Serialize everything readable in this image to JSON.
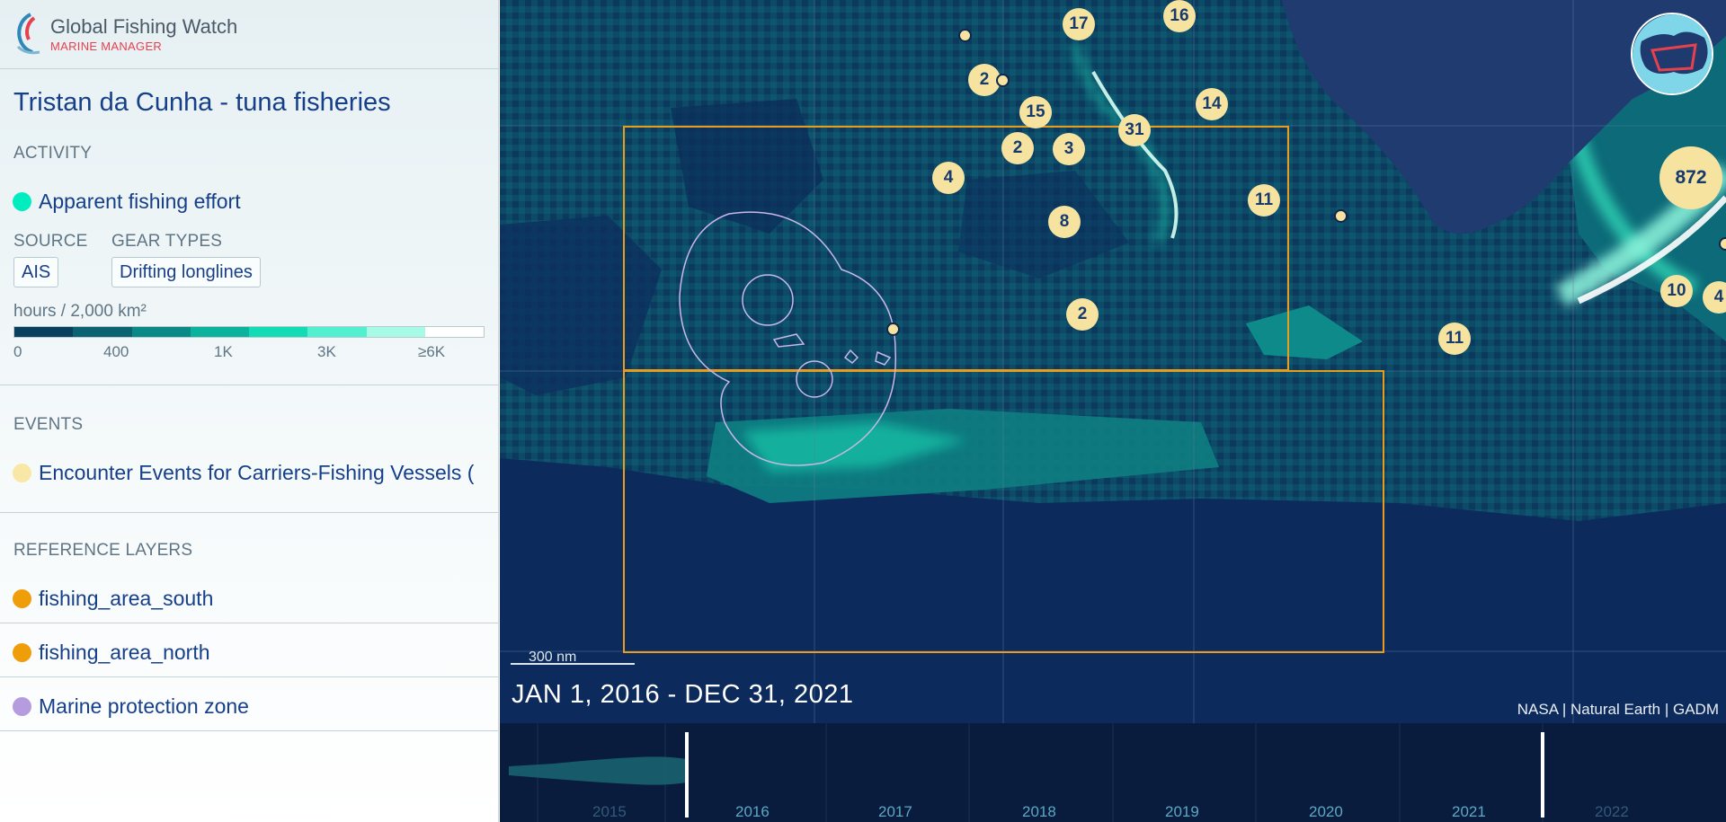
{
  "brand": {
    "name": "Global Fishing Watch",
    "subtitle": "MARINE MANAGER"
  },
  "workspace": {
    "title": "Tristan da Cunha - tuna fisheries"
  },
  "activity": {
    "section_title": "ACTIVITY",
    "layer": {
      "label": "Apparent fishing effort",
      "color": "#00eebf"
    },
    "source_title": "SOURCE",
    "source_value": "AIS",
    "gear_title": "GEAR TYPES",
    "gear_value": "Drifting longlines",
    "unit": "hours / 2,000 km²",
    "legend_colors": [
      "#0b3f5e",
      "#0b6371",
      "#0a8a86",
      "#0bb39d",
      "#13dcb5",
      "#52f0cf",
      "#a7fbe6",
      "#ffffff"
    ],
    "legend_labels": [
      "0",
      "400",
      "1K",
      "3K",
      "≥6K"
    ]
  },
  "events": {
    "section_title": "EVENTS",
    "layer": {
      "label": "Encounter Events for Carriers-Fishing Vessels (",
      "color": "#f9e7a6"
    }
  },
  "reference": {
    "section_title": "REFERENCE LAYERS",
    "layers": [
      {
        "label": "fishing_area_south",
        "color": "#f09d0a"
      },
      {
        "label": "fishing_area_north",
        "color": "#f09d0a"
      },
      {
        "label": "Marine protection zone",
        "color": "#b49cde"
      }
    ]
  },
  "map": {
    "date_range": "JAN 1, 2016 - DEC 31, 2021",
    "scale_label": "300 nm",
    "attribution": "NASA | Natural Earth | GADM",
    "clusters": [
      "17",
      "16",
      "2",
      "15",
      "14",
      "2",
      "3",
      "31",
      "4",
      "8",
      "11",
      "872",
      "2",
      "10",
      "4",
      "11"
    ],
    "colors": {
      "ocean": "#0c2a5c",
      "land": "#1e3a6e",
      "fishing_area": "#e89c1e",
      "mpa": "#c9b7e8",
      "encounter": "#f6e3a0"
    }
  },
  "timebar": {
    "years": [
      "2015",
      "2016",
      "2017",
      "2018",
      "2019",
      "2020",
      "2021",
      "2022"
    ],
    "selected_start": "2016",
    "selected_end": "2021"
  }
}
